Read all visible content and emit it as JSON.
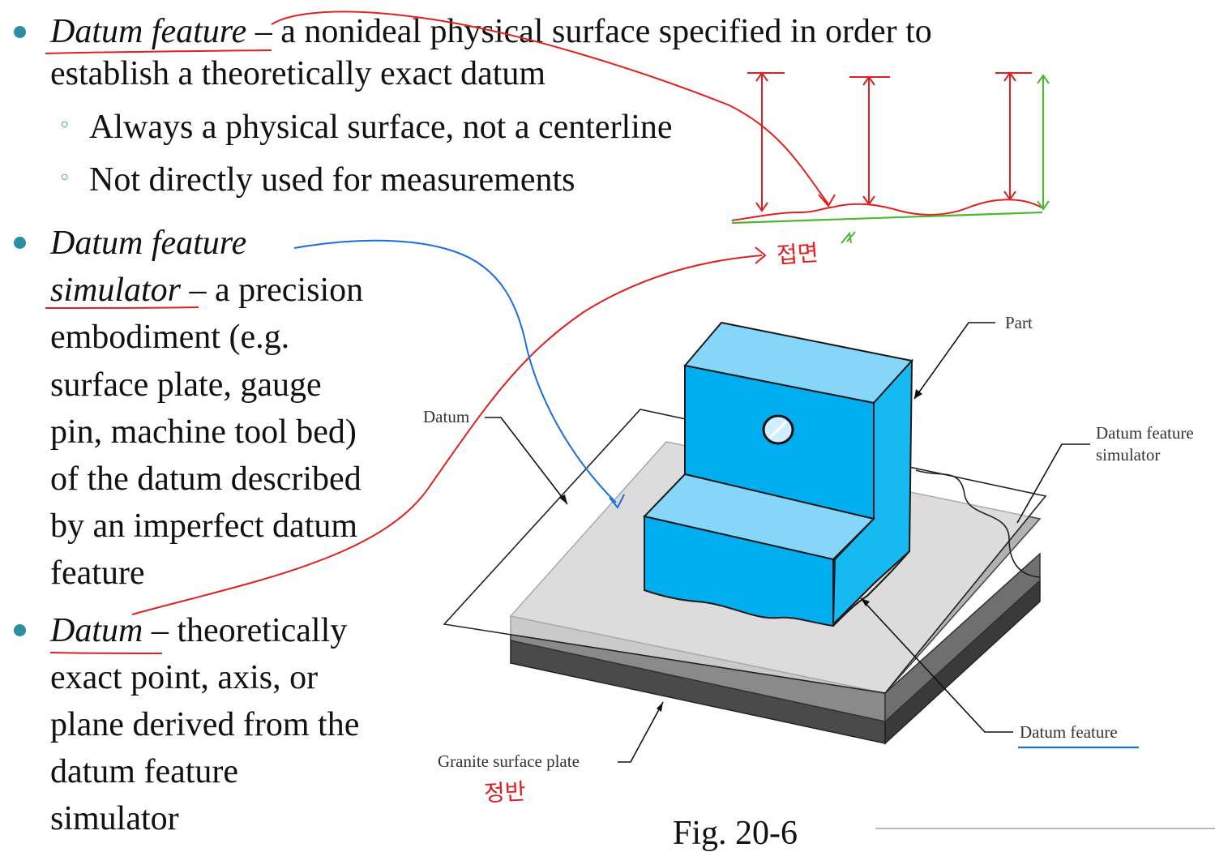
{
  "bullets": {
    "b1": {
      "term": "Datum feature",
      "line1_rest": " – a nonideal physical surface specified in order to",
      "line2": "establish a theoretically exact datum",
      "sub": [
        "Always a physical surface, not a centerline",
        "Not directly used for measurements"
      ]
    },
    "b2": {
      "term_line1": "Datum feature",
      "term_line2": "simulator",
      "line2_rest": " – a precision",
      "lines": [
        "embodiment (e.g.",
        "surface plate, gauge",
        "pin, machine tool bed)",
        "of the datum described",
        "by an imperfect datum",
        "feature"
      ]
    },
    "b3": {
      "term": "Datum",
      "line1_rest": " – theoretically",
      "lines": [
        "exact point, axis, or",
        "plane derived from the",
        "datum feature",
        "simulator"
      ]
    }
  },
  "figure": {
    "labels": {
      "part": "Part",
      "datum": "Datum",
      "dfs_line1": "Datum feature",
      "dfs_line2": "simulator",
      "datum_feature": "Datum feature",
      "granite": "Granite surface plate"
    },
    "caption": "Fig. 20-6"
  },
  "annotations": {
    "korean_contact_surface": "접면",
    "korean_surface_plate": "정반"
  },
  "colors": {
    "bullet": "#2b8fa3",
    "red_ink": "#e02020",
    "blue_ink": "#1a6fe0",
    "green_ink": "#4cb830",
    "part_front": "#00aeef",
    "part_top": "#7fd4f7",
    "part_side": "#17b9f2"
  }
}
